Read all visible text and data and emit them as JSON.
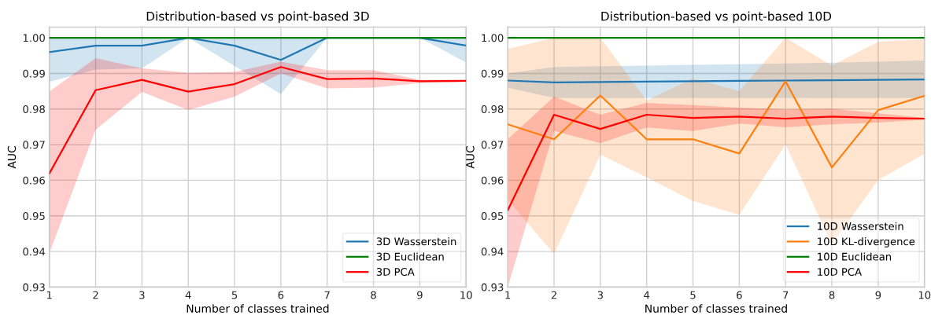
{
  "chart_data": [
    {
      "type": "line",
      "title": "Distribution-based vs point-based 3D",
      "xlabel": "Number of classes trained",
      "ylabel": "AUC",
      "x": [
        1,
        2,
        3,
        4,
        5,
        6,
        7,
        8,
        9,
        10
      ],
      "series": [
        {
          "name": "3D Wasserstein",
          "color": "#1f77b4",
          "values": [
            0.996,
            0.9978,
            0.9978,
            1.0,
            0.9978,
            0.9938,
            1.0,
            1.0,
            1.0,
            0.9978
          ],
          "lower": [
            0.9876,
            0.9911,
            0.9914,
            1.0,
            0.9921,
            0.9842,
            1.0,
            1.0,
            1.0,
            0.9931
          ],
          "upper": [
            1.0,
            1.0,
            1.0,
            1.0,
            1.0,
            1.0,
            1.0,
            1.0,
            1.0,
            1.0
          ]
        },
        {
          "name": "3D Euclidean",
          "color": "#008000",
          "values": [
            1.0,
            1.0,
            1.0,
            1.0,
            1.0,
            1.0,
            1.0,
            1.0,
            1.0,
            1.0
          ]
        },
        {
          "name": "3D PCA",
          "color": "#ff0000",
          "values": [
            0.9619,
            0.9853,
            0.9882,
            0.9849,
            0.987,
            0.9918,
            0.9884,
            0.9886,
            0.9878,
            0.9879
          ],
          "lower": [
            0.9395,
            0.9742,
            0.9848,
            0.9797,
            0.9835,
            0.99,
            0.9858,
            0.986,
            0.9873,
            0.9876
          ],
          "upper": [
            0.9849,
            0.9943,
            0.9914,
            0.9902,
            0.9904,
            0.9933,
            0.9909,
            0.9909,
            0.9882,
            0.9882
          ]
        }
      ],
      "xlim": [
        1,
        10
      ],
      "xticks": [
        1,
        2,
        3,
        4,
        5,
        6,
        7,
        8,
        9,
        10
      ],
      "ylim": [
        0.93,
        1.003
      ],
      "yticks": [
        0.93,
        0.94,
        0.95,
        0.96,
        0.97,
        0.98,
        0.99,
        {
          "value": 1.0,
          "label": "1.00"
        }
      ],
      "grid": true,
      "legend": "lower right",
      "line_style": "solid",
      "marker": "none"
    },
    {
      "type": "line",
      "title": "Distribution-based vs point-based 10D",
      "xlabel": "Number of classes trained",
      "ylabel": "AUC",
      "x": [
        1,
        2,
        3,
        4,
        5,
        6,
        7,
        8,
        9,
        10
      ],
      "series": [
        {
          "name": "10D Wasserstein",
          "color": "#1f77b4",
          "values": [
            0.988,
            0.9875,
            0.9876,
            0.9877,
            0.9878,
            0.9879,
            0.988,
            0.9881,
            0.9882,
            0.9883
          ],
          "lower": [
            0.986,
            0.9831,
            0.9831,
            0.9831,
            0.9831,
            0.9831,
            0.9831,
            0.9831,
            0.9831,
            0.9831
          ],
          "upper": [
            0.99,
            0.9918,
            0.992,
            0.9922,
            0.9924,
            0.9926,
            0.9928,
            0.993,
            0.9933,
            0.9936
          ]
        },
        {
          "name": "10D KL-divergence",
          "color": "#ff7f0e",
          "values": [
            0.9757,
            0.9715,
            0.9838,
            0.9715,
            0.9715,
            0.9675,
            0.9878,
            0.9636,
            0.9797,
            0.9837
          ],
          "lower": [
            0.9545,
            0.9393,
            0.9672,
            0.9608,
            0.9542,
            0.9503,
            0.97,
            0.942,
            0.9601,
            0.9674
          ],
          "upper": [
            0.9969,
            1.0,
            1.0,
            0.9824,
            0.9886,
            0.985,
            1.0,
            0.9922,
            0.9989,
            0.9995
          ]
        },
        {
          "name": "10D Euclidean",
          "color": "#008000",
          "values": [
            1.0,
            1.0,
            1.0,
            1.0,
            1.0,
            1.0,
            1.0,
            1.0,
            1.0,
            1.0
          ]
        },
        {
          "name": "10D PCA",
          "color": "#ff0000",
          "values": [
            0.9516,
            0.9784,
            0.9744,
            0.9784,
            0.9775,
            0.9779,
            0.9773,
            0.9779,
            0.9775,
            0.9773
          ],
          "lower": [
            0.93,
            0.9738,
            0.9704,
            0.9748,
            0.9738,
            0.9759,
            0.9749,
            0.9757,
            0.9762,
            0.977
          ],
          "upper": [
            0.9715,
            0.9835,
            0.9784,
            0.9817,
            0.9811,
            0.9804,
            0.9799,
            0.9801,
            0.9788,
            0.9775
          ]
        }
      ],
      "xlim": [
        1,
        10
      ],
      "xticks": [
        1,
        2,
        3,
        4,
        5,
        6,
        7,
        8,
        9,
        10
      ],
      "ylim": [
        0.93,
        1.003
      ],
      "yticks": [
        0.93,
        0.94,
        0.95,
        0.96,
        0.97,
        0.98,
        0.99,
        {
          "value": 1.0,
          "label": "1.00"
        }
      ],
      "grid": true,
      "legend": "lower right",
      "line_style": "solid",
      "marker": "none"
    }
  ]
}
